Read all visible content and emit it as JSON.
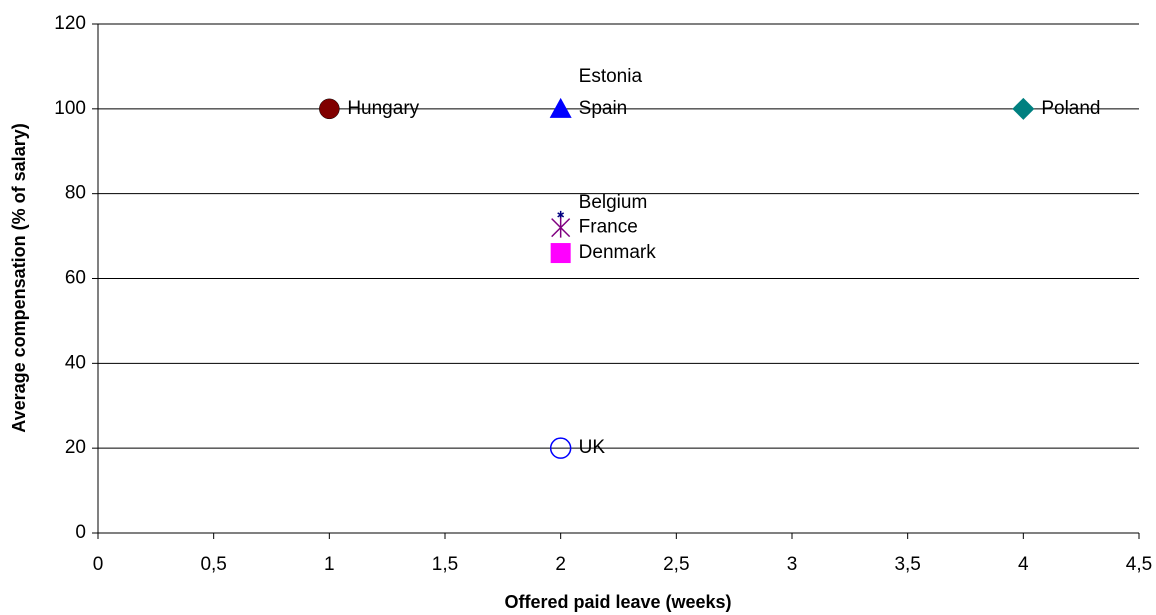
{
  "chart_data": {
    "type": "scatter",
    "x_label": "Offered paid leave (weeks)",
    "y_label": "Average compensation (% of salary)",
    "xlim": [
      0,
      4.5
    ],
    "xticks": [
      0,
      {
        "value": 0.5,
        "label": "0,5"
      },
      1,
      {
        "value": 1.5,
        "label": "1,5"
      },
      2,
      {
        "value": 2.5,
        "label": "2,5"
      },
      3,
      {
        "value": 3.5,
        "label": "3,5"
      },
      4,
      {
        "value": 4.5,
        "label": "4,5"
      }
    ],
    "ylim": [
      0,
      120
    ],
    "yticks": [
      0,
      20,
      40,
      60,
      80,
      100,
      120
    ],
    "grid": true,
    "series": [
      {
        "name": "Hungary",
        "color": "#800000",
        "marker": "circle",
        "x": [
          1
        ],
        "values": [
          100
        ]
      },
      {
        "name": "Spain",
        "color": "#0000ff",
        "marker": "triangle",
        "x": [
          2
        ],
        "values": [
          100
        ]
      },
      {
        "name": "Estonia",
        "color": "#000000",
        "marker": "none",
        "x": [
          2
        ],
        "values": [
          100
        ]
      },
      {
        "name": "Belgium",
        "color": "#000080",
        "marker": "star",
        "x": [
          2
        ],
        "values": [
          75
        ]
      },
      {
        "name": "France",
        "color": "#800080",
        "marker": "x",
        "x": [
          2
        ],
        "values": [
          72
        ]
      },
      {
        "name": "Denmark",
        "color": "#ff00ff",
        "marker": "square",
        "x": [
          2
        ],
        "values": [
          66
        ]
      },
      {
        "name": "UK",
        "color": "#0000ff",
        "marker": "open-circle",
        "x": [
          2
        ],
        "values": [
          20
        ]
      },
      {
        "name": "Poland",
        "color": "#008080",
        "marker": "diamond",
        "x": [
          4
        ],
        "values": [
          100
        ]
      }
    ]
  }
}
